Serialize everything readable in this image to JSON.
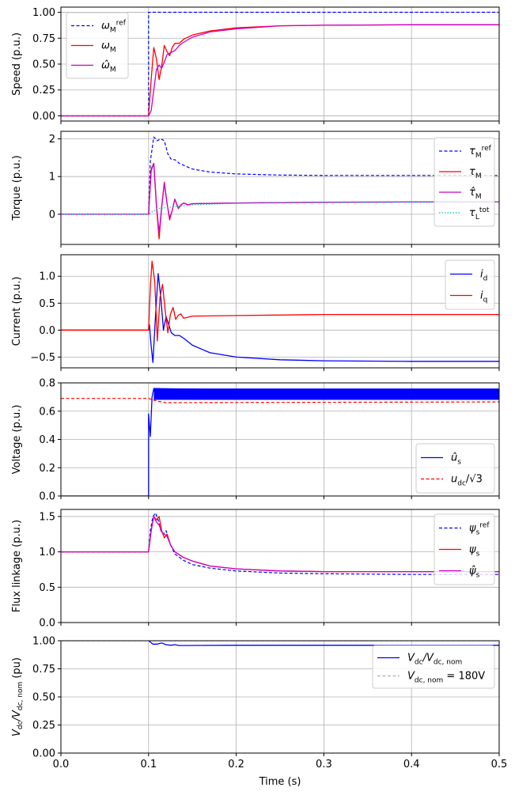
{
  "figure": {
    "xlabel": "Time (s)",
    "xticks": [
      "0.0",
      "0.1",
      "0.2",
      "0.3",
      "0.4",
      "0.5"
    ],
    "xlim": [
      0,
      0.5
    ]
  },
  "chart_data": [
    {
      "type": "line",
      "panel": "speed",
      "ylabel": "Speed (p.u.)",
      "ylim": [
        -0.05,
        1.05
      ],
      "yticks": [
        "0.00",
        "0.25",
        "0.50",
        "0.75",
        "1.00"
      ],
      "grid": true,
      "legend_position": "upper left",
      "series": [
        {
          "name": "ω_M^ref",
          "style": "dashed",
          "color": "#0000ff",
          "x": [
            0,
            0.1,
            0.1,
            0.5
          ],
          "y": [
            0,
            0,
            1.0,
            1.0
          ]
        },
        {
          "name": "ω_M",
          "style": "solid",
          "color": "#ff0000",
          "x": [
            0,
            0.1,
            0.103,
            0.106,
            0.109,
            0.112,
            0.115,
            0.118,
            0.121,
            0.124,
            0.127,
            0.13,
            0.135,
            0.14,
            0.15,
            0.17,
            0.2,
            0.25,
            0.3,
            0.4,
            0.5
          ],
          "y": [
            0,
            0,
            0.35,
            0.66,
            0.55,
            0.35,
            0.48,
            0.68,
            0.62,
            0.58,
            0.66,
            0.7,
            0.7,
            0.74,
            0.78,
            0.82,
            0.85,
            0.87,
            0.875,
            0.88,
            0.88
          ]
        },
        {
          "name": "ω̂_M",
          "style": "solid",
          "color": "#cc00cc",
          "x": [
            0,
            0.1,
            0.103,
            0.106,
            0.109,
            0.112,
            0.115,
            0.118,
            0.121,
            0.125,
            0.13,
            0.135,
            0.14,
            0.15,
            0.17,
            0.2,
            0.25,
            0.3,
            0.4,
            0.5
          ],
          "y": [
            0,
            0,
            0.05,
            0.25,
            0.45,
            0.49,
            0.46,
            0.52,
            0.59,
            0.61,
            0.63,
            0.68,
            0.71,
            0.76,
            0.81,
            0.84,
            0.87,
            0.875,
            0.88,
            0.88
          ]
        }
      ]
    },
    {
      "type": "line",
      "panel": "torque",
      "ylabel": "Torque (p.u.)",
      "ylim": [
        -0.8,
        2.2
      ],
      "yticks": [
        "0",
        "1",
        "2"
      ],
      "grid": true,
      "legend_position": "right",
      "series": [
        {
          "name": "τ_M^ref",
          "style": "dashed",
          "color": "#0000ff",
          "x": [
            0,
            0.1,
            0.102,
            0.106,
            0.11,
            0.114,
            0.118,
            0.122,
            0.126,
            0.13,
            0.135,
            0.14,
            0.15,
            0.17,
            0.2,
            0.25,
            0.3,
            0.4,
            0.5
          ],
          "y": [
            0,
            0,
            1.4,
            2.05,
            1.95,
            2.0,
            1.95,
            1.6,
            1.45,
            1.45,
            1.35,
            1.3,
            1.2,
            1.12,
            1.07,
            1.04,
            1.03,
            1.03,
            1.03
          ]
        },
        {
          "name": "τ_M",
          "style": "solid",
          "color": "#ff0000",
          "x": [
            0,
            0.1,
            0.103,
            0.106,
            0.109,
            0.112,
            0.115,
            0.118,
            0.121,
            0.124,
            0.127,
            0.13,
            0.134,
            0.137,
            0.14,
            0.145,
            0.15,
            0.2,
            0.3,
            0.5
          ],
          "y": [
            0,
            0,
            1.2,
            1.35,
            0.2,
            -0.65,
            0.2,
            0.85,
            0.3,
            -0.15,
            0.1,
            0.4,
            0.15,
            0.25,
            0.3,
            0.25,
            0.28,
            0.3,
            0.32,
            0.33
          ]
        },
        {
          "name": "τ̂_M",
          "style": "solid",
          "color": "#cc00cc",
          "x": [
            0,
            0.1,
            0.103,
            0.106,
            0.109,
            0.112,
            0.115,
            0.118,
            0.121,
            0.124,
            0.127,
            0.13,
            0.134,
            0.137,
            0.14,
            0.145,
            0.15,
            0.2,
            0.3,
            0.5
          ],
          "y": [
            0,
            0,
            1.15,
            1.35,
            0.25,
            -0.5,
            0.2,
            0.82,
            0.3,
            -0.1,
            0.1,
            0.4,
            0.15,
            0.25,
            0.3,
            0.25,
            0.28,
            0.3,
            0.32,
            0.33
          ]
        },
        {
          "name": "τ_L^tot",
          "style": "dotted",
          "color": "#00bfbf",
          "x": [
            0,
            0.1,
            0.11,
            0.13,
            0.15,
            0.2,
            0.3,
            0.5
          ],
          "y": [
            0,
            0,
            0.15,
            0.2,
            0.25,
            0.29,
            0.31,
            0.33
          ]
        }
      ]
    },
    {
      "type": "line",
      "panel": "current",
      "ylabel": "Current (p.u.)",
      "ylim": [
        -0.7,
        1.4
      ],
      "yticks": [
        "−0.5",
        "0.0",
        "0.5",
        "1.0"
      ],
      "grid": true,
      "legend_position": "upper right",
      "series": [
        {
          "name": "i_d",
          "style": "solid",
          "color": "#0000ff",
          "x": [
            0,
            0.1,
            0.101,
            0.103,
            0.105,
            0.108,
            0.111,
            0.114,
            0.117,
            0.12,
            0.123,
            0.126,
            0.13,
            0.135,
            0.14,
            0.15,
            0.17,
            0.2,
            0.25,
            0.3,
            0.4,
            0.5
          ],
          "y": [
            0,
            0,
            0.1,
            -0.3,
            -0.6,
            0.3,
            1.05,
            0.6,
            0.0,
            0.25,
            0.1,
            -0.05,
            -0.1,
            -0.1,
            -0.15,
            -0.28,
            -0.42,
            -0.5,
            -0.55,
            -0.57,
            -0.58,
            -0.58
          ]
        },
        {
          "name": "i_q",
          "style": "solid",
          "color": "#ff0000",
          "x": [
            0,
            0.1,
            0.102,
            0.104,
            0.107,
            0.11,
            0.113,
            0.116,
            0.119,
            0.122,
            0.125,
            0.128,
            0.131,
            0.134,
            0.137,
            0.14,
            0.15,
            0.2,
            0.3,
            0.5
          ],
          "y": [
            0,
            0,
            0.8,
            1.28,
            0.9,
            -0.2,
            0.6,
            0.85,
            0.35,
            -0.05,
            0.3,
            0.42,
            0.2,
            0.28,
            0.3,
            0.22,
            0.26,
            0.27,
            0.29,
            0.29
          ]
        }
      ]
    },
    {
      "type": "line",
      "panel": "voltage",
      "ylabel": "Voltage (p.u.)",
      "ylim": [
        0,
        0.8
      ],
      "yticks": [
        "0.0",
        "0.2",
        "0.4",
        "0.6",
        "0.8"
      ],
      "grid": true,
      "legend_position": "lower right",
      "series": [
        {
          "name": "û_s",
          "style": "solid",
          "color": "#0000ff",
          "x": [
            0,
            0.1,
            0.1,
            0.102,
            0.104,
            0.106,
            0.5
          ],
          "y": [
            0,
            0,
            0.58,
            0.42,
            0.7,
            0.76,
            0.72
          ],
          "band": [
            0.68,
            0.76
          ]
        },
        {
          "name": "u_dc/√3",
          "style": "dashed",
          "color": "#ff0000",
          "x": [
            0,
            0.1,
            0.11,
            0.12,
            0.5
          ],
          "y": [
            0.69,
            0.69,
            0.67,
            0.66,
            0.665
          ]
        }
      ]
    },
    {
      "type": "line",
      "panel": "flux",
      "ylabel": "Flux linkage (p.u.)",
      "ylim": [
        0,
        1.6
      ],
      "yticks": [
        "0.0",
        "0.5",
        "1.0",
        "1.5"
      ],
      "grid": true,
      "legend_position": "upper right",
      "series": [
        {
          "name": "ψ_s^ref",
          "style": "dashed",
          "color": "#0000ff",
          "x": [
            0,
            0.1,
            0.102,
            0.105,
            0.108,
            0.111,
            0.114,
            0.117,
            0.12,
            0.125,
            0.13,
            0.14,
            0.15,
            0.17,
            0.2,
            0.25,
            0.3,
            0.4,
            0.5
          ],
          "y": [
            1.0,
            1.0,
            1.3,
            1.5,
            1.55,
            1.45,
            1.3,
            1.25,
            1.3,
            1.1,
            0.97,
            0.88,
            0.82,
            0.77,
            0.73,
            0.7,
            0.69,
            0.68,
            0.68
          ]
        },
        {
          "name": "ψ_s",
          "style": "solid",
          "color": "#ff0000",
          "x": [
            0,
            0.1,
            0.103,
            0.106,
            0.109,
            0.112,
            0.115,
            0.118,
            0.121,
            0.125,
            0.13,
            0.14,
            0.15,
            0.17,
            0.2,
            0.25,
            0.3,
            0.4,
            0.5
          ],
          "y": [
            1.0,
            1.0,
            1.3,
            1.5,
            1.45,
            1.5,
            1.3,
            1.2,
            1.25,
            1.1,
            1.0,
            0.92,
            0.87,
            0.8,
            0.76,
            0.73,
            0.72,
            0.72,
            0.72
          ]
        },
        {
          "name": "ψ̂_s",
          "style": "solid",
          "color": "#cc00cc",
          "x": [
            0,
            0.1,
            0.103,
            0.106,
            0.109,
            0.112,
            0.115,
            0.118,
            0.121,
            0.125,
            0.13,
            0.14,
            0.15,
            0.17,
            0.2,
            0.25,
            0.3,
            0.4,
            0.5
          ],
          "y": [
            1.0,
            1.0,
            1.3,
            1.5,
            1.42,
            1.38,
            1.28,
            1.25,
            1.22,
            1.1,
            1.0,
            0.92,
            0.87,
            0.8,
            0.76,
            0.73,
            0.72,
            0.72,
            0.72
          ]
        }
      ]
    },
    {
      "type": "line",
      "panel": "dc_voltage",
      "ylabel": "V_dc/V_dc,nom (pu)",
      "ylim": [
        0,
        1.0
      ],
      "yticks": [
        "0.00",
        "0.25",
        "0.50",
        "0.75",
        "1.00"
      ],
      "grid": true,
      "legend_position": "upper right",
      "series": [
        {
          "name": "V_dc/V_dc,nom",
          "style": "solid",
          "color": "#0000ff",
          "x": [
            0.1,
            0.105,
            0.11,
            0.115,
            0.12,
            0.125,
            0.13,
            0.135,
            0.14,
            0.2,
            0.3,
            0.4,
            0.5
          ],
          "y": [
            1.0,
            0.97,
            0.97,
            0.98,
            0.965,
            0.96,
            0.965,
            0.958,
            0.958,
            0.96,
            0.96,
            0.96,
            0.96
          ]
        },
        {
          "name": "V_dc,nom = 180V",
          "style": "dashed",
          "color": "#b0b0b0",
          "x": [
            0,
            0.5
          ],
          "y": [
            1.0,
            1.0
          ]
        }
      ]
    }
  ],
  "legends": {
    "speed": [
      "ref",
      "M",
      "M",
      "M"
    ],
    "dc_nom_value": "= 180V",
    "sqrt3": "3"
  }
}
